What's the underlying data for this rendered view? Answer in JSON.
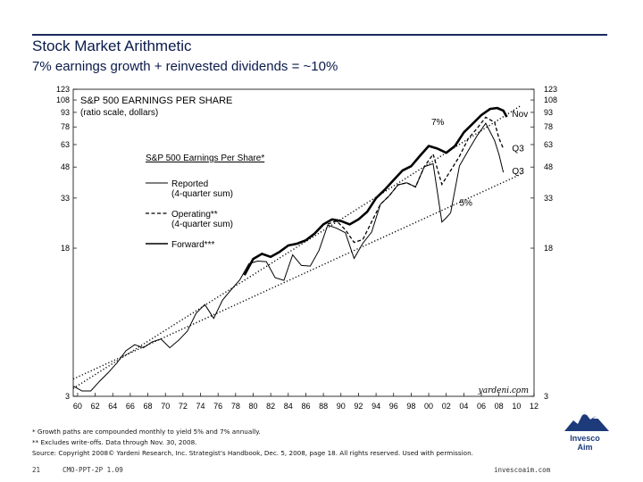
{
  "slide": {
    "title": "Stock Market Arithmetic",
    "subtitle": "7% earnings growth + reinvested dividends = ~10%"
  },
  "footnotes": [
    "* Growth paths are compounded monthly to yield 5% and 7% annually.",
    "** Excludes write-offs. Data through Nov. 30, 2008.",
    "Source: Copyright 2008© Yardeni Research, Inc. Strategist's Handbook, Dec. 5, 2008, page 18. All rights reserved. Used with permission."
  ],
  "footer": {
    "page": "21",
    "code": "CMO-PPT-2P  1.09",
    "url": "invescoaim.com"
  },
  "logo": {
    "line1": "Invesco",
    "line2": "Aim",
    "color": "#1d3a7a"
  },
  "chart_data": {
    "type": "line",
    "title": "S&P 500 EARNINGS PER SHARE",
    "subtitle": "(ratio scale, dollars)",
    "legend_title": "S&P 500 Earnings Per Share*",
    "legend_position": "left-center",
    "watermark": "yardeni.com",
    "y_scale": "log",
    "ylim": [
      3,
      123
    ],
    "y_ticks_left": [
      "123",
      "108",
      "93",
      "78",
      "63",
      "48",
      "33",
      "18",
      "3"
    ],
    "y_ticks_right": [
      "123",
      "108",
      "93",
      "78",
      "63",
      "48",
      "33",
      "18",
      "3"
    ],
    "y_tick_values": [
      123,
      108,
      93,
      78,
      63,
      48,
      33,
      18,
      3
    ],
    "xlim": [
      1959.5,
      2012
    ],
    "x_ticks": [
      "60",
      "62",
      "64",
      "66",
      "68",
      "70",
      "72",
      "74",
      "76",
      "78",
      "80",
      "82",
      "84",
      "86",
      "88",
      "90",
      "92",
      "94",
      "96",
      "98",
      "00",
      "02",
      "04",
      "06",
      "08",
      "10",
      "12"
    ],
    "x_tick_values": [
      1960,
      1962,
      1964,
      1966,
      1968,
      1970,
      1972,
      1974,
      1976,
      1978,
      1980,
      1982,
      1984,
      1986,
      1988,
      1990,
      1992,
      1994,
      1996,
      1998,
      2000,
      2002,
      2004,
      2006,
      2008,
      2010,
      2012
    ],
    "annotations": [
      {
        "text": "7%",
        "x": 2000.3,
        "y": 80
      },
      {
        "text": "5%",
        "x": 2003.5,
        "y": 30
      },
      {
        "text": "Nov",
        "x": 2009.5,
        "y": 88
      },
      {
        "text": "Q3",
        "x": 2009.5,
        "y": 58
      },
      {
        "text": "Q3",
        "x": 2009.5,
        "y": 44
      }
    ],
    "series": [
      {
        "name": "Reported",
        "legend_label": [
          "Reported",
          "(4-quarter sum)"
        ],
        "style": "solid-thin",
        "x": [
          1959.5,
          1960.5,
          1961.5,
          1962.5,
          1963.5,
          1964.5,
          1965.5,
          1966.5,
          1967.5,
          1968.5,
          1969.5,
          1970.5,
          1971.5,
          1972.5,
          1973.5,
          1974.5,
          1975.5,
          1976.5,
          1977.5,
          1978.5,
          1979.5,
          1980.5,
          1981.5,
          1982.5,
          1983.5,
          1984.5,
          1985.5,
          1986.5,
          1987.5,
          1988.5,
          1989.5,
          1990.5,
          1991.5,
          1992.5,
          1993.5,
          1994.5,
          1995.5,
          1996.5,
          1997.5,
          1998.5,
          1999.5,
          2000.5,
          2001.5,
          2002.0,
          2002.5,
          2003.5,
          2004.5,
          2005.5,
          2006.5,
          2007.5,
          2008.0,
          2008.5
        ],
        "y": [
          3.4,
          3.2,
          3.2,
          3.6,
          4.0,
          4.5,
          5.2,
          5.6,
          5.4,
          5.8,
          6.0,
          5.4,
          5.9,
          6.6,
          8.2,
          9.1,
          7.7,
          9.6,
          10.9,
          12.3,
          14.9,
          15.4,
          15.3,
          12.6,
          12.2,
          16.6,
          14.6,
          14.5,
          17.5,
          23.8,
          22.9,
          21.7,
          15.9,
          19.1,
          21.9,
          30.6,
          33.9,
          38.7,
          39.7,
          37.7,
          48.2,
          50.0,
          24.7,
          26.0,
          27.6,
          48.7,
          58.5,
          69.9,
          81.5,
          66.2,
          56.0,
          45.0
        ]
      },
      {
        "name": "Operating**",
        "legend_label": [
          "Operating**",
          "(4-quarter sum)"
        ],
        "style": "dashed",
        "x": [
          1988.5,
          1989.5,
          1990.5,
          1991.5,
          1992.5,
          1993.5,
          1994.5,
          1995.5,
          1996.5,
          1997.5,
          1998.5,
          1999.5,
          2000.5,
          2001.5,
          2002.5,
          2003.5,
          2004.5,
          2005.5,
          2006.5,
          2007.5,
          2008.0,
          2008.5
        ],
        "y": [
          24.1,
          25.0,
          22.5,
          19.3,
          20.0,
          24.8,
          30.6,
          33.9,
          38.7,
          39.7,
          37.7,
          48.2,
          56.1,
          38.9,
          46.0,
          54.7,
          67.7,
          76.5,
          87.7,
          82.5,
          68.0,
          60.0
        ]
      },
      {
        "name": "Forward***",
        "legend_label": [
          "Forward***"
        ],
        "style": "solid-thick",
        "x": [
          1979.0,
          1980.0,
          1981.0,
          1982.0,
          1983.0,
          1984.0,
          1985.0,
          1986.0,
          1987.0,
          1988.0,
          1989.0,
          1990.0,
          1991.0,
          1992.0,
          1993.0,
          1994.0,
          1995.0,
          1996.0,
          1997.0,
          1998.0,
          1999.0,
          2000.0,
          2001.0,
          2002.0,
          2003.0,
          2004.0,
          2005.0,
          2006.0,
          2007.0,
          2007.8,
          2008.5,
          2008.9
        ],
        "y": [
          13.0,
          15.8,
          16.8,
          16.2,
          17.2,
          18.6,
          19.0,
          19.8,
          21.5,
          24.0,
          25.5,
          25.0,
          24.0,
          25.5,
          28.0,
          33.0,
          36.5,
          41.0,
          46.0,
          48.5,
          55.0,
          62.0,
          60.0,
          57.0,
          62.0,
          73.0,
          81.0,
          90.0,
          97.0,
          98.0,
          95.0,
          88.0
        ]
      },
      {
        "name": "5% growth path",
        "style": "dotted",
        "x": [
          1959.5,
          2010.5
        ],
        "y": [
          3.7,
          44.0
        ]
      },
      {
        "name": "7% growth path",
        "style": "dotted",
        "x": [
          1959.5,
          2010.5
        ],
        "y": [
          3.3,
          101.0
        ]
      }
    ]
  }
}
